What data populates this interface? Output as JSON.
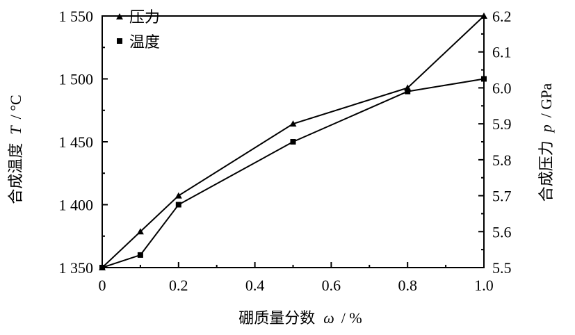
{
  "chart_data": {
    "type": "line",
    "x": [
      0,
      0.1,
      0.2,
      0.5,
      0.8,
      1.0
    ],
    "xlim": [
      0,
      1.0
    ],
    "xticks": [
      0,
      0.2,
      0.4,
      0.6,
      0.8,
      1.0
    ],
    "xtick_labels": [
      "0",
      "0.2",
      "0.4",
      "0.6",
      "0.8",
      "1.0"
    ],
    "xlabel": "硼质量分数",
    "xlabel_symbol": "ω",
    "xlabel_unit": "/ %",
    "y_left": {
      "label": "合成温度",
      "symbol": "T",
      "unit": "/ °C",
      "lim": [
        1350,
        1550
      ],
      "ticks": [
        1350,
        1400,
        1450,
        1500,
        1550
      ],
      "tick_labels": [
        "1 350",
        "1 400",
        "1 450",
        "1 500",
        "1 550"
      ]
    },
    "y_right": {
      "label": "合成压力",
      "symbol": "p",
      "unit": "/ GPa",
      "lim": [
        5.5,
        6.2
      ],
      "ticks": [
        5.5,
        5.6,
        5.7,
        5.8,
        5.9,
        6.0,
        6.1,
        6.2
      ],
      "tick_labels": [
        "5.5",
        "5.6",
        "5.7",
        "5.8",
        "5.9",
        "6.0",
        "6.1",
        "6.2"
      ]
    },
    "series": [
      {
        "name": "压力",
        "axis": "right",
        "marker": "triangle",
        "values": [
          5.5,
          5.6,
          5.7,
          5.9,
          6.0,
          6.2
        ]
      },
      {
        "name": "温度",
        "axis": "left",
        "marker": "square",
        "values": [
          1350,
          1360,
          1400,
          1450,
          1490,
          1500
        ]
      }
    ],
    "legend_position": "top-left",
    "grid": false
  }
}
